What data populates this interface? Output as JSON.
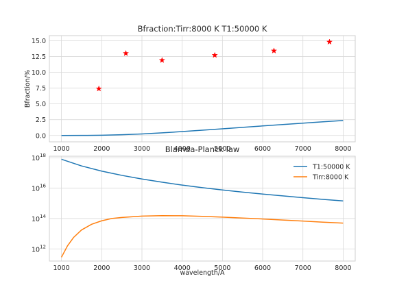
{
  "chart_data": [
    {
      "type": "line",
      "title": "Bfraction:Tirr:8000 K T1:50000 K",
      "xlabel": "",
      "ylabel": "Bfraction/%",
      "xlim": [
        700,
        8300
      ],
      "ylim": [
        -1.0,
        15.8
      ],
      "xticks": [
        1000,
        2000,
        3000,
        4000,
        5000,
        6000,
        7000,
        8000
      ],
      "yticks": [
        0.0,
        2.5,
        5.0,
        7.5,
        10.0,
        12.5,
        15.0
      ],
      "ytick_labels": [
        "0.0",
        "2.5",
        "5.0",
        "7.5",
        "10.0",
        "12.5",
        "15.0"
      ],
      "grid": true,
      "series": [
        {
          "style": "line",
          "color": "#1f77b4",
          "x": [
            1000,
            1500,
            2000,
            2500,
            3000,
            3500,
            4000,
            4500,
            5000,
            5500,
            6000,
            6500,
            7000,
            7500,
            8000
          ],
          "y": [
            0.0,
            0.01,
            0.04,
            0.12,
            0.25,
            0.42,
            0.62,
            0.84,
            1.06,
            1.29,
            1.52,
            1.74,
            1.96,
            2.17,
            2.38
          ]
        },
        {
          "style": "marker",
          "marker": "star",
          "color": "#ff0000",
          "x": [
            1930,
            2600,
            3500,
            4810,
            6280,
            7660
          ],
          "y": [
            7.4,
            13.0,
            11.9,
            12.7,
            13.4,
            14.8
          ]
        }
      ]
    },
    {
      "type": "line",
      "title": "Blamda-Planck law",
      "xlabel": "wavelength/A",
      "ylabel": "",
      "xlim": [
        700,
        8300
      ],
      "ylim_log10": [
        11.2,
        18.1
      ],
      "yscale": "log",
      "xticks": [
        1000,
        2000,
        3000,
        4000,
        5000,
        6000,
        7000,
        8000
      ],
      "yticks_log10": [
        12,
        14,
        16,
        18
      ],
      "ytick_labels": [
        {
          "base": "10",
          "exp": "12"
        },
        {
          "base": "10",
          "exp": "14"
        },
        {
          "base": "10",
          "exp": "16"
        },
        {
          "base": "10",
          "exp": "18"
        }
      ],
      "grid": true,
      "legend_position": "top-right",
      "series": [
        {
          "name": "T1:50000 K",
          "color": "#1f77b4",
          "x": [
            1000,
            1500,
            2000,
            2500,
            3000,
            3500,
            4000,
            4500,
            5000,
            5500,
            6000,
            6500,
            7000,
            7500,
            8000
          ],
          "log10_y": [
            17.9,
            17.46,
            17.12,
            16.84,
            16.6,
            16.39,
            16.2,
            16.03,
            15.88,
            15.74,
            15.61,
            15.49,
            15.37,
            15.26,
            15.16
          ]
        },
        {
          "name": "Tirr:8000 K",
          "color": "#ff7f0e",
          "x": [
            1000,
            1150,
            1300,
            1500,
            1750,
            2000,
            2250,
            2500,
            3000,
            3500,
            4000,
            4500,
            5000,
            5500,
            6000,
            6500,
            7000,
            7500,
            8000
          ],
          "log10_y": [
            11.45,
            12.2,
            12.75,
            13.25,
            13.62,
            13.85,
            14.0,
            14.07,
            14.16,
            14.19,
            14.18,
            14.14,
            14.09,
            14.03,
            13.97,
            13.9,
            13.83,
            13.76,
            13.7
          ]
        }
      ]
    }
  ]
}
